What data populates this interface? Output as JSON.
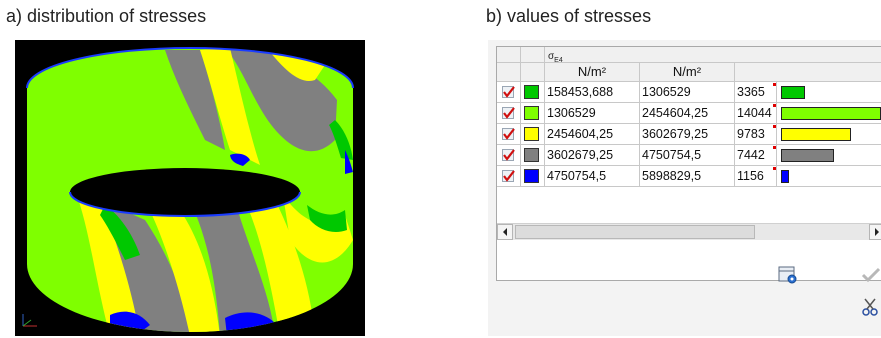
{
  "captions": {
    "a": "a) distribution of stresses",
    "b": "b) values of stresses"
  },
  "table": {
    "header": {
      "sigma_label": "σ",
      "sigma_subscript": "E4",
      "unit_from": "N/m²",
      "unit_to": "N/m²"
    },
    "rows": [
      {
        "color": "#00c800",
        "from": "158453,688",
        "to": "1306529",
        "count": "3365",
        "fill": 0.24
      },
      {
        "color": "#7fff00",
        "from": "1306529",
        "to": "2454604,25",
        "count": "14044",
        "fill": 1.0
      },
      {
        "color": "#ffff00",
        "from": "2454604,25",
        "to": "3602679,25",
        "count": "9783",
        "fill": 0.7
      },
      {
        "color": "#808080",
        "from": "3602679,25",
        "to": "4750754,5",
        "count": "7442",
        "fill": 0.53
      },
      {
        "color": "#0000ff",
        "from": "4750754,5",
        "to": "5898829,5",
        "count": "1156",
        "fill": 0.08
      }
    ]
  },
  "icons": {
    "checkbox": "checked-box-icon",
    "scroll_left": "arrow-left-icon",
    "scroll_right": "arrow-right-icon",
    "settings": "table-settings-icon",
    "ok": "checkmark-icon",
    "cut": "scissors-icon"
  },
  "colors": {
    "green": "#00c800",
    "lime": "#7fff00",
    "yellow": "#ffff00",
    "gray": "#808080",
    "blue": "#0000ff"
  }
}
